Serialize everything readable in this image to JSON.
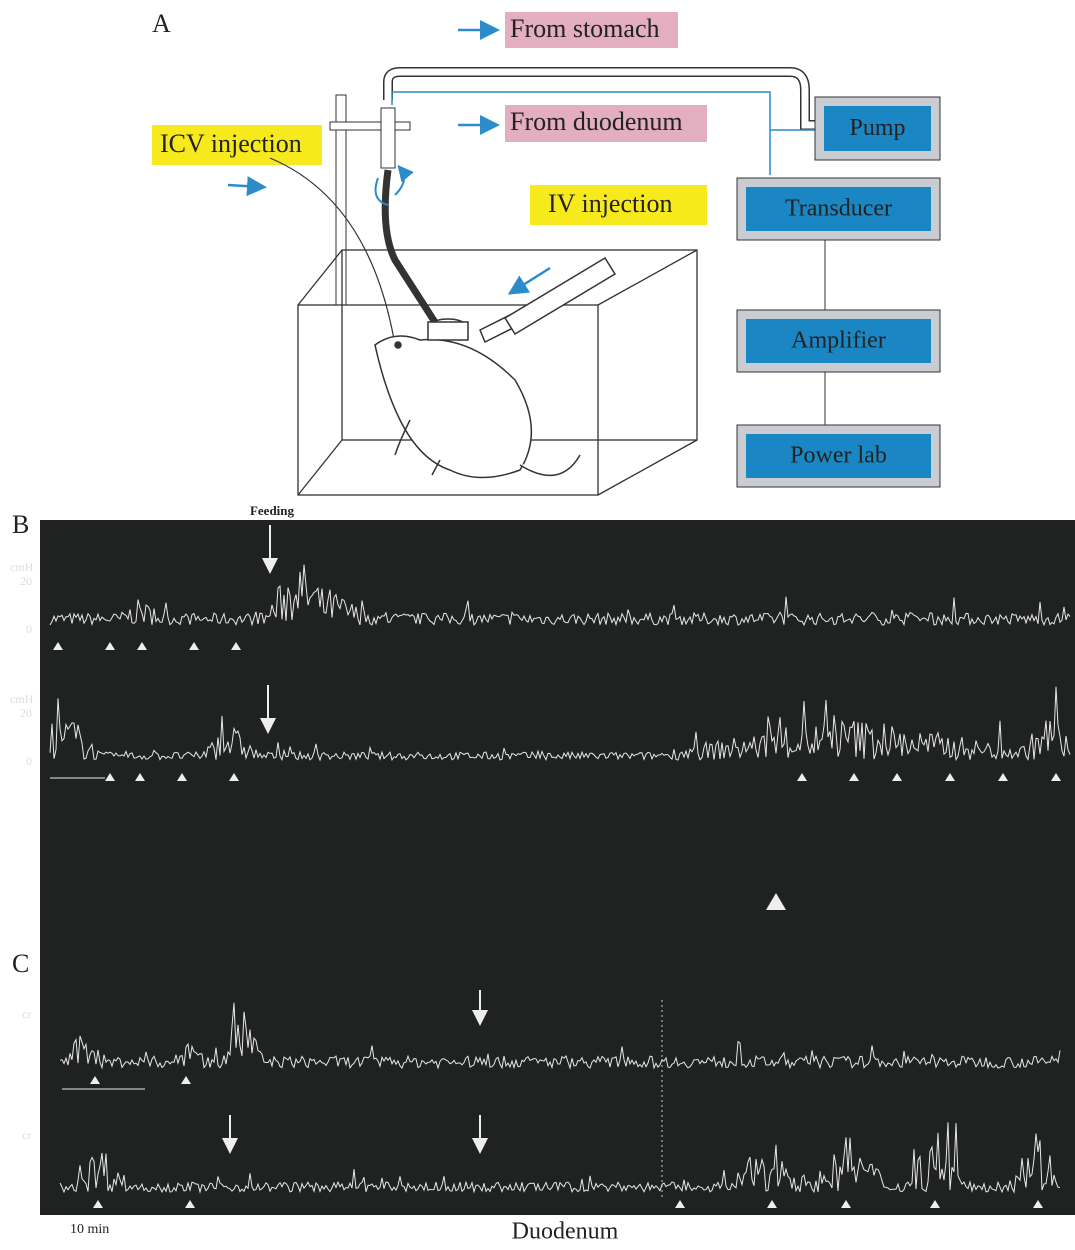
{
  "panel_a": {
    "label": "A",
    "from_stomach": "From stomach",
    "from_duodenum": "From duodenum",
    "icv_injection": "ICV injection",
    "iv_injection": "IV injection",
    "boxes": [
      "Pump",
      "Transducer",
      "Amplifier",
      "Power lab"
    ]
  },
  "panel_b": {
    "label": "B",
    "feeding": "Feeding",
    "traces": [
      {
        "unit": "cmH",
        "ticks": [
          "20",
          "0"
        ]
      },
      {
        "unit": "cmH",
        "ticks": [
          "20",
          "0"
        ]
      }
    ]
  },
  "panel_c": {
    "label": "C",
    "traces": [
      {
        "unit": "cr"
      },
      {
        "unit": "cr"
      }
    ],
    "scale": "10 min",
    "caption": "Duodenum"
  }
}
